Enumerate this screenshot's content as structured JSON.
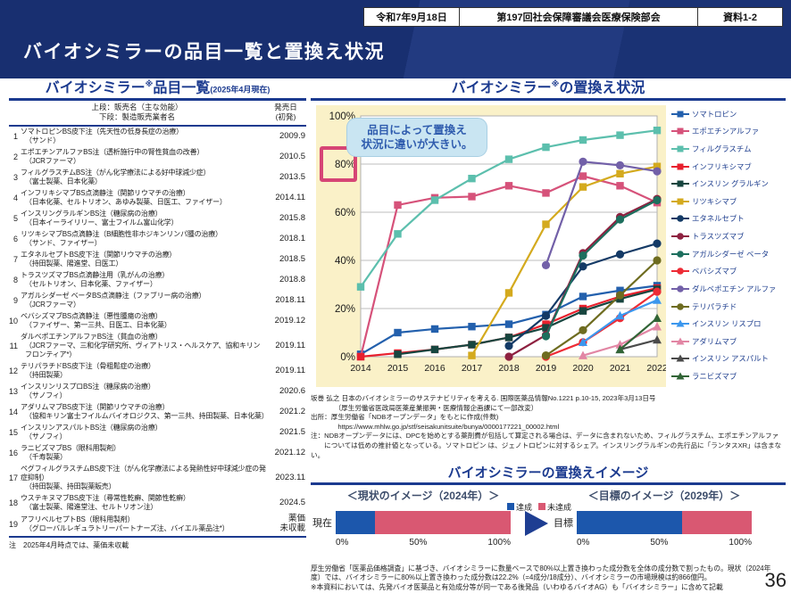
{
  "header": {
    "title": "バイオシミラーの品目一覧と置換え状況",
    "date_box": "令和7年9月18日",
    "meeting_box": "第197回社会保障審議会医療保険部会",
    "doc_box": "資料1-2"
  },
  "left_panel": {
    "title_main": "バイオシミラー",
    "title_sup": "※",
    "title_rest": "品目一覧",
    "title_date": "(2025年4月現在)",
    "col_header_main": "上段：販売名（主な効能）\n下段：製造販売業者名",
    "col_header_date": "発売日\n(初発)",
    "rows": [
      {
        "no": "1",
        "name": "ソマトロピンBS皮下注（先天性の低身長症の治療）",
        "maker": "（サンド）",
        "date": "2009.9"
      },
      {
        "no": "2",
        "name": "エポエチンアルファBS注（透析施行中の腎性貧血の改善）",
        "maker": "（JCRファーマ）",
        "date": "2010.5"
      },
      {
        "no": "3",
        "name": "フィルグラスチムBS注（がん化学療法による好中球減少症）",
        "maker": "（富士製薬、日本化薬）",
        "date": "2013.5"
      },
      {
        "no": "4",
        "name": "インフリキシマブBS点滴静注（関節リウマチの治療）",
        "maker": "（日本化薬、セルトリオン、あゆみ製薬、日医工、ファイザー）",
        "date": "2014.11"
      },
      {
        "no": "5",
        "name": "インスリングラルギンBS注（糖尿病の治療）",
        "maker": "（日本イーライリリー、富士フイルム富山化学）",
        "date": "2015.8"
      },
      {
        "no": "6",
        "name": "リツキシマブBS点滴静注（B細胞性非ホジキンリンパ腫の治療）",
        "maker": "（サンド、ファイザー）",
        "date": "2018.1"
      },
      {
        "no": "7",
        "name": "エタネルセプトBS皮下注（関節リウマチの治療）",
        "maker": "（持田製薬、陽進堂、日医工）",
        "date": "2018.5"
      },
      {
        "no": "8",
        "name": "トラスツズマブBS点滴静注用（乳がんの治療）",
        "maker": "（セルトリオン、日本化薬、ファイザー）",
        "date": "2018.8"
      },
      {
        "no": "9",
        "name": "アガルシダーゼ ベータBS点滴静注（ファブリー病の治療）",
        "maker": "（JCRファーマ）",
        "date": "2018.11"
      },
      {
        "no": "10",
        "name": "ベバシズマブBS点滴静注（悪性腫瘍の治療）",
        "maker": "（ファイザー、第一三共、日医工、日本化薬）",
        "date": "2019.12"
      },
      {
        "no": "11",
        "name": "ダルベポエチンアルファBS注（貧血の治療）",
        "maker": "（JCRファーマ、三和化学研究所、ヴィアトリス・ヘルスケア、協和キリンフロンティア*）",
        "date": "2019.11"
      },
      {
        "no": "12",
        "name": "テリパラチドBS皮下注（骨粗鬆症の治療）",
        "maker": "（持田製薬）",
        "date": "2019.11"
      },
      {
        "no": "13",
        "name": "インスリンリスプロBS注（糖尿病の治療）",
        "maker": "（サノフィ）",
        "date": "2020.6"
      },
      {
        "no": "14",
        "name": "アダリムマブBS皮下注（関節リウマチの治療）",
        "maker": "（協和キリン富士フイルムバイオロジクス、第一三共、持田製薬、日本化薬）",
        "date": "2021.2"
      },
      {
        "no": "15",
        "name": "インスリンアスパルトBS注（糖尿病の治療）",
        "maker": "（サノフィ）",
        "date": "2021.5"
      },
      {
        "no": "16",
        "name": "ラニビズマブBS（眼科用製剤）",
        "maker": "（千寿製薬）",
        "date": "2021.12"
      },
      {
        "no": "17",
        "name": "ペグフィルグラスチムBS皮下注（がん化学療法による発熱性好中球減少症の発症抑制）",
        "maker": "（持田製薬、持田製薬販売）",
        "date": "2023.11"
      },
      {
        "no": "18",
        "name": "ウステキヌマブBS皮下注（尋常性乾癬、関節性乾癬）",
        "maker": "（富士製薬、陽進堂注、セルトリオン注）",
        "date": "2024.5"
      },
      {
        "no": "19",
        "name": "アフリベルセプトBS（眼科用製剤）",
        "maker": "（グローバルレギュラトリーパートナーズ注、バイエル薬品注*）",
        "date": "薬価\n未収載"
      }
    ],
    "note": "注　2025年4月時点では、薬価未収載"
  },
  "chart_panel": {
    "title_main": "バイオシミラー",
    "title_sup": "※",
    "title_rest": "の置換え状況",
    "annotation": "品目によって置換え\n状況に違いが大きい。",
    "source_lines": [
      "坂巻 弘之 日本のバイオシミラーのサステナビリティを考える. 国際医薬品情報No.1221 p.10-15, 2023年3月13日号",
      "　　　　（厚生労働省医政局医薬産業振興・医療情報企画課にて一部改変）",
      "出所：厚生労働省「NDBオープンデータ」をもとに作成(件数)",
      "　　　　https://www.mhlw.go.jp/stf/seisakunitsuite/bunya/0000177221_00002.html",
      "注：NDBオープンデータには、DPCを始めとする薬剤費が包括して算定される場合は、データに含まれないため、フィルグラスチム、エポエチンアルファ",
      "　　については低めの推計値となっている。ソマトロピン は、ジェノトロピンに対するシェア。インスリングラルギンの先行品に「ランタスXR」は含まない。"
    ]
  },
  "chart_data": [
    {
      "type": "line",
      "title": "バイオシミラー※の置換え状況",
      "x": [
        2014,
        2015,
        2016,
        2017,
        2018,
        2019,
        2020,
        2021,
        2022
      ],
      "ylim": [
        0,
        100
      ],
      "yticks": [
        "0%",
        "20%",
        "40%",
        "60%",
        "80%",
        "100%"
      ],
      "grid": true,
      "legend_position": "right",
      "series": [
        {
          "name": "ソマトロピン",
          "color": "#2360ad",
          "marker": "square",
          "values": [
            1,
            10,
            11.5,
            12.5,
            13.5,
            17.5,
            25,
            27.5,
            29.5
          ]
        },
        {
          "name": "エポエチンアルファ",
          "color": "#d6527a",
          "marker": "square",
          "values": [
            0,
            63,
            66,
            66.5,
            71,
            68,
            75,
            71,
            64
          ]
        },
        {
          "name": "フィルグラスチム",
          "color": "#5cbfad",
          "marker": "square",
          "values": [
            29,
            51,
            65,
            74,
            82,
            87,
            90,
            92,
            94
          ]
        },
        {
          "name": "インフリキシマブ",
          "color": "#e8202d",
          "marker": "square",
          "values": [
            0,
            1.5,
            3,
            5,
            8,
            13.5,
            20,
            25,
            28.5
          ]
        },
        {
          "name": "インスリン グラルギン",
          "color": "#17453f",
          "marker": "square",
          "values": [
            null,
            1,
            3,
            5,
            8,
            12,
            19,
            24,
            28
          ]
        },
        {
          "name": "リツキシマブ",
          "color": "#d4aa1e",
          "marker": "square",
          "values": [
            null,
            null,
            null,
            0.5,
            26.5,
            55,
            70.5,
            76,
            79
          ]
        },
        {
          "name": "エタネルセプト",
          "color": "#143a66",
          "marker": "circle",
          "values": [
            null,
            null,
            null,
            null,
            4.5,
            17,
            37.5,
            42.5,
            47
          ]
        },
        {
          "name": "トラスツズマブ",
          "color": "#8e2140",
          "marker": "circle",
          "values": [
            null,
            null,
            null,
            null,
            0,
            9,
            43,
            58,
            65.5
          ]
        },
        {
          "name": "アガルシダーゼ ベータ",
          "color": "#1d6f5e",
          "marker": "circle",
          "values": [
            null,
            null,
            null,
            null,
            null,
            8.5,
            42,
            57,
            65
          ]
        },
        {
          "name": "ベバシズマブ",
          "color": "#ed2b35",
          "marker": "circle",
          "values": [
            null,
            null,
            null,
            null,
            null,
            0,
            6,
            16,
            27
          ]
        },
        {
          "name": "ダルベポエチン アルファ",
          "color": "#7260a8",
          "marker": "circle",
          "values": [
            null,
            null,
            null,
            null,
            null,
            38,
            81,
            79.5,
            77
          ]
        },
        {
          "name": "テリパラチド",
          "color": "#6e6c20",
          "marker": "circle",
          "values": [
            null,
            null,
            null,
            null,
            null,
            0.5,
            11,
            25.5,
            40
          ]
        },
        {
          "name": "インスリン リスプロ",
          "color": "#3b97ee",
          "marker": "triangle",
          "values": [
            null,
            null,
            null,
            null,
            null,
            null,
            6,
            17,
            23.5
          ]
        },
        {
          "name": "アダリムマブ",
          "color": "#e286a4",
          "marker": "triangle",
          "values": [
            null,
            null,
            null,
            null,
            null,
            null,
            0.5,
            5,
            12.5
          ]
        },
        {
          "name": "インスリン アスパルト",
          "color": "#4a4a4a",
          "marker": "triangle",
          "values": [
            null,
            null,
            null,
            null,
            null,
            null,
            null,
            3,
            7
          ]
        },
        {
          "name": "ラニビズマブ",
          "color": "#316436",
          "marker": "triangle",
          "values": [
            null,
            null,
            null,
            null,
            null,
            null,
            null,
            3,
            16
          ]
        }
      ]
    },
    {
      "type": "bar",
      "title": "バイオシミラーの置換えイメージ",
      "categories": [
        "現在（2024年）",
        "目標（2029年）"
      ],
      "series": [
        {
          "name": "達成",
          "color": "#1c57ac",
          "values": [
            22.2,
            60
          ]
        },
        {
          "name": "未達成",
          "color": "#d95872",
          "values": [
            77.8,
            40
          ]
        }
      ],
      "xlim": [
        0,
        100
      ],
      "xticks": [
        "0%",
        "50%",
        "100%"
      ]
    }
  ],
  "image_panel": {
    "title": "バイオシミラーの置換えイメージ",
    "current_header": "＜現状のイメージ（2024年）＞",
    "target_header": "＜目標のイメージ（2029年）＞",
    "legend_achieved": "達成",
    "legend_not_achieved": "未達成",
    "row_label_current": "現在",
    "row_label_target": "目標",
    "axis": [
      "0%",
      "50%",
      "100%"
    ]
  },
  "footnote": {
    "note_p1": "厚生労働省「医薬品価格調査」に基づき、バイオシミラーに数量ベースで80%以上置き換わった成分数を全体の成分数で割ったもの。現状（2024年度）では、バイオシミラーに80%以上置き換わった成分数は22.2%（=4成分/18成分）、バイオシミラーの市場規模は約866億円。",
    "note_p2": "※本資料においては、先発バイオ医薬品と有効成分等が同一である後発品（いわゆるバイオAG）も「バイオシミラー」に含めて記載"
  },
  "page_number": "36",
  "colors": {
    "header_navy": "#182f70",
    "heading_blue": "#1b3a8f",
    "chart_background": "#faf1c8",
    "annotation_bg": "#c9e5f2",
    "annotation_text": "#2f5cae",
    "highlight_pink": "#d64575",
    "achieved_blue": "#1c57ac",
    "not_achieved_pink": "#d95872"
  }
}
